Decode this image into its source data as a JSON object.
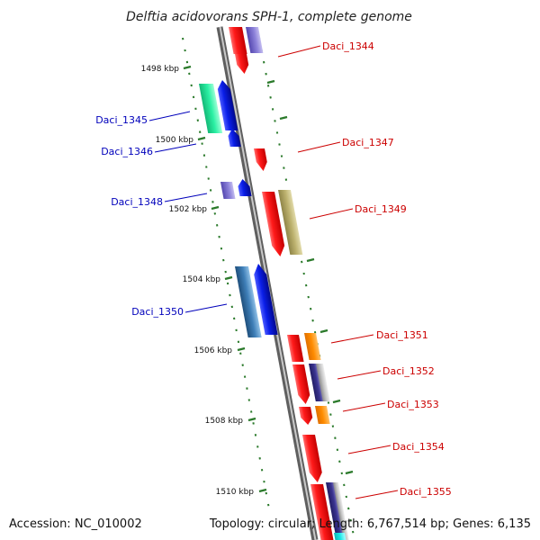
{
  "title": "Delftia acidovorans SPH-1, complete genome",
  "accession": "Accession: NC_010002",
  "topology": "Topology: circular; Length: 6,767,514 bp; Genes: 6,135",
  "scale": {
    "unit": "kbp",
    "ticks": [
      {
        "label": "1498 kbp"
      },
      {
        "label": "1500 kbp"
      },
      {
        "label": "1502 kbp"
      },
      {
        "label": "1504 kbp"
      },
      {
        "label": "1506 kbp"
      },
      {
        "label": "1508 kbp"
      },
      {
        "label": "1510 kbp"
      }
    ]
  },
  "colors": {
    "backbone": "#7d7d7d",
    "tick": "#2b7a2b",
    "forward_label": "#cc0000",
    "reverse_label": "#0000bb",
    "red": "#ff1a1a",
    "purple": "#6f63c9",
    "green": "#22e39a",
    "blue": "#0a1ee8",
    "khaki": "#b8ad6a",
    "steel": "#3f7fb8",
    "orange": "#ff8c00",
    "navy": "#3a3490",
    "grey": "#b5b5b5",
    "cyan": "#18e6e6"
  },
  "gene_labels": [
    {
      "name": "Daci_1344",
      "strand": "forward"
    },
    {
      "name": "Daci_1345",
      "strand": "reverse"
    },
    {
      "name": "Daci_1346",
      "strand": "reverse"
    },
    {
      "name": "Daci_1347",
      "strand": "forward"
    },
    {
      "name": "Daci_1348",
      "strand": "reverse"
    },
    {
      "name": "Daci_1349",
      "strand": "forward"
    },
    {
      "name": "Daci_1350",
      "strand": "reverse"
    },
    {
      "name": "Daci_1351",
      "strand": "forward"
    },
    {
      "name": "Daci_1352",
      "strand": "forward"
    },
    {
      "name": "Daci_1353",
      "strand": "forward"
    },
    {
      "name": "Daci_1354",
      "strand": "forward"
    },
    {
      "name": "Daci_1355",
      "strand": "forward"
    }
  ]
}
